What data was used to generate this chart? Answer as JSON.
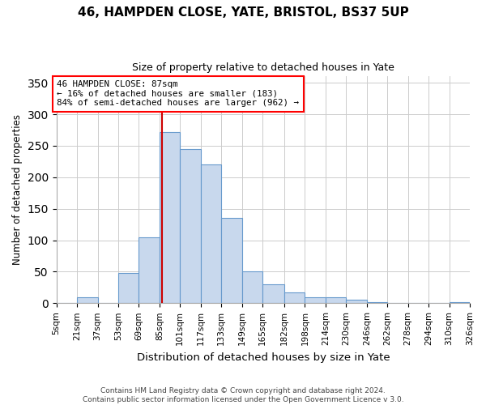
{
  "title": "46, HAMPDEN CLOSE, YATE, BRISTOL, BS37 5UP",
  "subtitle": "Size of property relative to detached houses in Yate",
  "xlabel": "Distribution of detached houses by size in Yate",
  "ylabel": "Number of detached properties",
  "footer_line1": "Contains HM Land Registry data © Crown copyright and database right 2024.",
  "footer_line2": "Contains public sector information licensed under the Open Government Licence v 3.0.",
  "annotation_line1": "46 HAMPDEN CLOSE: 87sqm",
  "annotation_line2": "← 16% of detached houses are smaller (183)",
  "annotation_line3": "84% of semi-detached houses are larger (962) →",
  "bin_edges": [
    5,
    21,
    37,
    53,
    69,
    85,
    101,
    117,
    133,
    149,
    165,
    182,
    198,
    214,
    230,
    246,
    262,
    278,
    294,
    310,
    326
  ],
  "bin_counts": [
    0,
    10,
    0,
    48,
    104,
    272,
    245,
    220,
    135,
    50,
    30,
    17,
    10,
    10,
    5,
    2,
    0,
    0,
    0,
    2
  ],
  "bar_color": "#c8d8ed",
  "bar_edge_color": "#6699cc",
  "property_line_x": 87,
  "property_line_color": "#cc0000",
  "background_color": "#ffffff",
  "grid_color": "#cccccc",
  "ylim": [
    0,
    360
  ],
  "yticks": [
    0,
    50,
    100,
    150,
    200,
    250,
    300,
    350
  ],
  "tick_labels": [
    "5sqm",
    "21sqm",
    "37sqm",
    "53sqm",
    "69sqm",
    "85sqm",
    "101sqm",
    "117sqm",
    "133sqm",
    "149sqm",
    "165sqm",
    "182sqm",
    "198sqm",
    "214sqm",
    "230sqm",
    "246sqm",
    "262sqm",
    "278sqm",
    "294sqm",
    "310sqm",
    "326sqm"
  ]
}
